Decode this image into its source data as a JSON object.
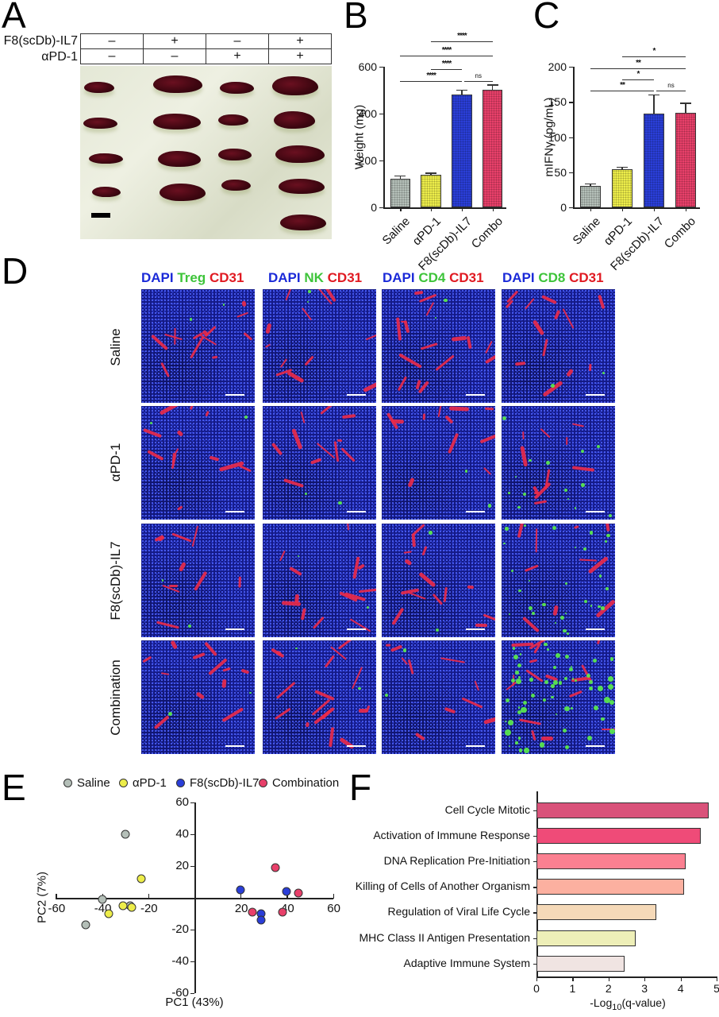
{
  "panels": {
    "A": {
      "letter": "A",
      "row_labels": [
        "F8(scDb)-IL7",
        "αPD-1"
      ],
      "table": [
        [
          "–",
          "+",
          "–",
          "+"
        ],
        [
          "–",
          "–",
          "+",
          "+"
        ]
      ],
      "photo_description": "Excised spleens on white tray, 4 columns (n=4,4,4,5), scale bar bottom-left"
    },
    "B": {
      "letter": "B"
    },
    "C": {
      "letter": "C"
    },
    "D": {
      "letter": "D",
      "column_headers": [
        [
          {
            "text": "DAPI",
            "color": "blue"
          },
          {
            "text": "Treg",
            "color": "green"
          },
          {
            "text": "CD31",
            "color": "red"
          }
        ],
        [
          {
            "text": "DAPI",
            "color": "blue"
          },
          {
            "text": "NK",
            "color": "green"
          },
          {
            "text": "CD31",
            "color": "red"
          }
        ],
        [
          {
            "text": "DAPI",
            "color": "blue"
          },
          {
            "text": "CD4",
            "color": "green"
          },
          {
            "text": "CD31",
            "color": "red"
          }
        ],
        [
          {
            "text": "DAPI",
            "color": "blue"
          },
          {
            "text": "CD8",
            "color": "green"
          },
          {
            "text": "CD31",
            "color": "red"
          }
        ]
      ],
      "row_labels": [
        "Saline",
        "αPD-1",
        "F8(scDb)-IL7",
        "Combination"
      ]
    },
    "E": {
      "letter": "E"
    },
    "F": {
      "letter": "F"
    }
  },
  "colors": {
    "saline": "#b4bfb8",
    "apd1": "#eded4a",
    "f8": "#2a3ed8",
    "combo": "#e8406a",
    "dapi": "#1b2ad8",
    "green_marker": "#3ec43a",
    "cd31": "#e01a22"
  },
  "chart_data": [
    {
      "id": "B",
      "type": "bar",
      "title": "",
      "categories": [
        "Saline",
        "αPD-1",
        "F8(scDb)-IL7",
        "Combo"
      ],
      "values": [
        123,
        140,
        483,
        503
      ],
      "errors": [
        14,
        9,
        20,
        22
      ],
      "bar_colors": [
        "#b4bfb8",
        "#eded4a",
        "#2a3ed8",
        "#e8406a"
      ],
      "xlabel": "",
      "ylabel": "Weight (mg)",
      "ylim": [
        0,
        600
      ],
      "yticks": [
        0,
        200,
        400,
        600
      ],
      "significance": [
        {
          "from": 1,
          "to": 3,
          "label": "****"
        },
        {
          "from": 0,
          "to": 3,
          "label": "****"
        },
        {
          "from": 1,
          "to": 2,
          "label": "****"
        },
        {
          "from": 0,
          "to": 2,
          "label": "****"
        },
        {
          "from": 2,
          "to": 3,
          "label": "ns"
        }
      ]
    },
    {
      "id": "C",
      "type": "bar",
      "title": "",
      "categories": [
        "Saline",
        "αPD-1",
        "F8(scDb)-IL7",
        "Combo"
      ],
      "values": [
        30,
        54,
        133,
        134
      ],
      "errors": [
        4,
        4,
        28,
        15
      ],
      "bar_colors": [
        "#b4bfb8",
        "#eded4a",
        "#2a3ed8",
        "#e8406a"
      ],
      "xlabel": "",
      "ylabel": "mIFNγ (pg/mL)",
      "ylim": [
        0,
        200
      ],
      "yticks": [
        0,
        50,
        100,
        150,
        200
      ],
      "significance": [
        {
          "from": 1,
          "to": 3,
          "label": "*"
        },
        {
          "from": 0,
          "to": 3,
          "label": "**"
        },
        {
          "from": 1,
          "to": 2,
          "label": "*"
        },
        {
          "from": 0,
          "to": 2,
          "label": "**"
        },
        {
          "from": 2,
          "to": 3,
          "label": "ns"
        }
      ]
    },
    {
      "id": "E",
      "type": "scatter",
      "title": "",
      "xlabel": "PC1 (43%)",
      "ylabel": "PC2 (7%)",
      "xlim": [
        -60,
        60
      ],
      "ylim": [
        -60,
        60
      ],
      "xticks": [
        -60,
        -40,
        -20,
        20,
        40,
        60
      ],
      "yticks": [
        -60,
        -40,
        -20,
        20,
        40,
        60
      ],
      "legend_position": "top",
      "series": [
        {
          "name": "Saline",
          "color": "#b4bfb8",
          "points": [
            [
              -30,
              40
            ],
            [
              -40,
              -1
            ],
            [
              -47,
              -17
            ],
            [
              -28,
              -5
            ]
          ]
        },
        {
          "name": "αPD-1",
          "color": "#eded4a",
          "points": [
            [
              -23,
              12
            ],
            [
              -31,
              -5
            ],
            [
              -27,
              -6
            ],
            [
              -37,
              -10
            ]
          ]
        },
        {
          "name": "F8(scDb)-IL7",
          "color": "#2a3ed8",
          "points": [
            [
              20,
              5
            ],
            [
              40,
              4
            ],
            [
              29,
              -10
            ],
            [
              29,
              -14
            ]
          ]
        },
        {
          "name": "Combination",
          "color": "#e8406a",
          "points": [
            [
              35,
              19
            ],
            [
              45,
              3
            ],
            [
              25,
              -9
            ],
            [
              38,
              -9
            ]
          ]
        }
      ]
    },
    {
      "id": "F",
      "type": "bar",
      "orientation": "horizontal",
      "title": "",
      "categories": [
        "Cell Cycle Mitotic",
        "Activation of Immune Response",
        "DNA Replication Pre-Initiation",
        "Killing of Cells of Another Organism",
        "Regulation of Viral Life Cycle",
        "MHC Class II Antigen Presentation",
        "Adaptive Immune System"
      ],
      "values": [
        4.77,
        4.55,
        4.13,
        4.09,
        3.33,
        2.75,
        2.45
      ],
      "bar_colors": [
        "#d9527a",
        "#ef4b78",
        "#fb8091",
        "#fcb0a0",
        "#f5d9b8",
        "#eeefb8",
        "#f0e4e2"
      ],
      "xlabel": "-Log10(q-value)",
      "xlabel_parts": {
        "pre": "-Log",
        "sub": "10",
        "post": "(q-value)"
      },
      "ylabel": "",
      "xlim": [
        0,
        5
      ],
      "xticks": [
        0,
        1,
        2,
        3,
        4,
        5
      ]
    }
  ]
}
